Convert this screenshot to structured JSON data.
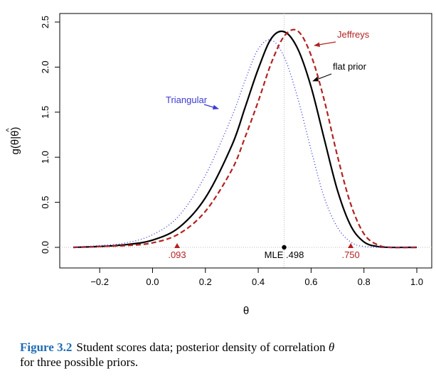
{
  "chart_data": {
    "type": "line",
    "xlabel": "θ",
    "ylabel_text": "g(θ|θ)",
    "ylabel_hat": "^",
    "xlim": [
      -0.3,
      1.0
    ],
    "ylim": [
      0,
      2.5
    ],
    "xticks": [
      "−0.2",
      "0.0",
      "0.2",
      "0.4",
      "0.6",
      "0.8",
      "1.0"
    ],
    "xtick_values": [
      -0.2,
      0.0,
      0.2,
      0.4,
      0.6,
      0.8,
      1.0
    ],
    "yticks": [
      "0.0",
      "0.5",
      "1.0",
      "1.5",
      "2.0",
      "2.5"
    ],
    "ytick_values": [
      0.0,
      0.5,
      1.0,
      1.5,
      2.0,
      2.5
    ],
    "grid": false,
    "reference_lines": {
      "x": 0.498,
      "y": 0.0
    },
    "series": [
      {
        "name": "flat prior",
        "color": "#000000",
        "style": "solid",
        "x": [
          -0.3,
          -0.2,
          -0.1,
          0.0,
          0.1,
          0.2,
          0.3,
          0.35,
          0.4,
          0.45,
          0.5,
          0.55,
          0.6,
          0.65,
          0.7,
          0.75,
          0.8,
          0.85,
          0.9,
          1.0
        ],
        "y": [
          0.0,
          0.01,
          0.03,
          0.08,
          0.22,
          0.55,
          1.13,
          1.55,
          1.98,
          2.32,
          2.39,
          2.2,
          1.78,
          1.2,
          0.63,
          0.24,
          0.06,
          0.01,
          0.0,
          0.0
        ]
      },
      {
        "name": "Jeffreys",
        "color": "#b22222",
        "style": "dashed",
        "x": [
          -0.3,
          -0.2,
          -0.1,
          0.0,
          0.1,
          0.2,
          0.3,
          0.35,
          0.4,
          0.45,
          0.5,
          0.55,
          0.6,
          0.65,
          0.7,
          0.75,
          0.8,
          0.85,
          0.9,
          1.0
        ],
        "y": [
          0.0,
          0.01,
          0.02,
          0.05,
          0.15,
          0.4,
          0.86,
          1.22,
          1.62,
          2.05,
          2.35,
          2.4,
          2.13,
          1.63,
          1.01,
          0.48,
          0.15,
          0.03,
          0.0,
          0.0
        ]
      },
      {
        "name": "Triangular",
        "color": "#3a3ad6",
        "style": "dotted",
        "x": [
          -0.3,
          -0.2,
          -0.1,
          0.0,
          0.1,
          0.2,
          0.3,
          0.35,
          0.4,
          0.45,
          0.5,
          0.55,
          0.6,
          0.65,
          0.7,
          0.75,
          0.8,
          0.9,
          1.0
        ],
        "y": [
          0.0,
          0.02,
          0.05,
          0.14,
          0.35,
          0.8,
          1.45,
          1.85,
          2.2,
          2.3,
          2.1,
          1.65,
          1.08,
          0.55,
          0.22,
          0.06,
          0.01,
          0.0,
          0.0
        ]
      }
    ],
    "annotations": {
      "jeffreys": {
        "text": "Jeffreys",
        "color": "#b22222"
      },
      "flat": {
        "text": "flat prior",
        "color": "#000000"
      },
      "triangular": {
        "text": "Triangular",
        "color": "#3a3ad6"
      },
      "mle": {
        "text": "MLE .498",
        "x": 0.498,
        "color": "#000000"
      },
      "lower": {
        "text": ".093",
        "x": 0.093,
        "color": "#b22222"
      },
      "upper": {
        "text": ".750",
        "x": 0.75,
        "color": "#b22222"
      }
    }
  },
  "caption": {
    "label": "Figure 3.2",
    "text_before_theta": "Student scores data; posterior density of correlation ",
    "theta": "θ",
    "text_after_theta": "",
    "line2": "for three possible priors."
  }
}
